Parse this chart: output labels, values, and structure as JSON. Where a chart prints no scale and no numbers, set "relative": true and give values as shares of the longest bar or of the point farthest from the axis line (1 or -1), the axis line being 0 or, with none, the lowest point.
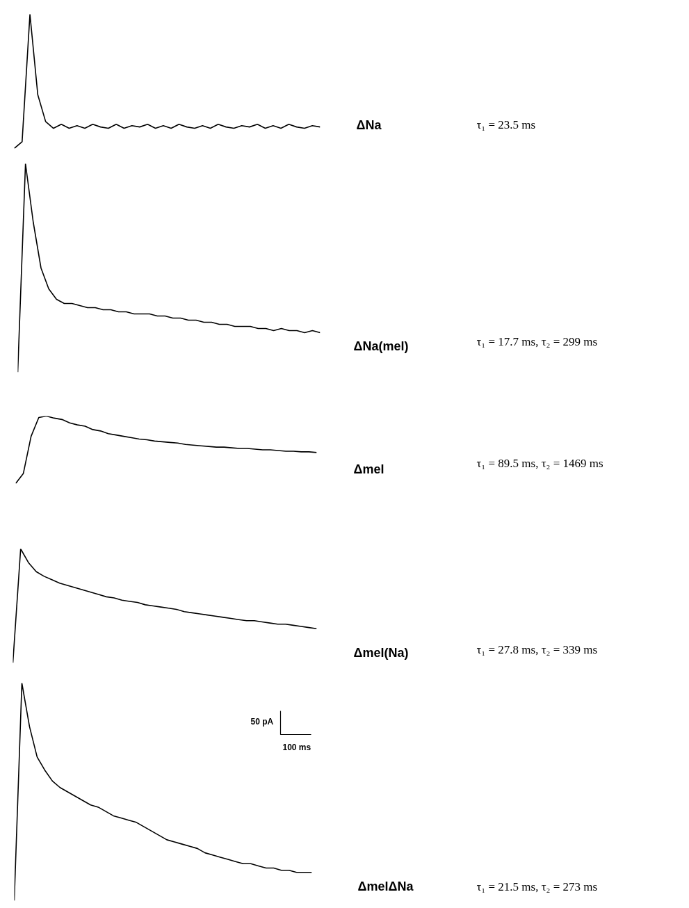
{
  "chart_data": [
    {
      "type": "line",
      "relative": true,
      "categories": [
        null,
        null,
        null,
        null,
        null,
        null,
        null,
        null,
        null,
        null,
        null,
        null,
        null,
        null,
        null,
        null,
        null,
        null,
        null,
        null,
        null,
        null,
        null,
        null,
        null,
        null,
        null,
        null,
        null,
        null,
        null,
        null,
        null,
        null,
        null,
        null,
        null,
        null,
        null,
        null
      ],
      "series": [
        {
          "color": "#000000",
          "values": [
            0,
            0.05,
            1,
            0.4,
            0.2,
            0.15,
            0.18,
            0.15,
            0.17,
            0.15,
            0.18,
            0.16,
            0.15,
            0.18,
            0.15,
            0.17,
            0.16,
            0.18,
            0.15,
            0.17,
            0.15,
            0.18,
            0.16,
            0.15,
            0.17,
            0.15,
            0.18,
            0.16,
            0.15,
            0.17,
            0.16,
            0.18,
            0.15,
            0.17,
            0.15,
            0.18,
            0.16,
            0.15,
            0.17,
            0.16
          ]
        }
      ],
      "annotations": [
        "ΔNa",
        "τ₁ = 23.5 ms"
      ]
    },
    {
      "type": "line",
      "relative": true,
      "categories": [
        null,
        null,
        null,
        null,
        null,
        null,
        null,
        null,
        null,
        null,
        null,
        null,
        null,
        null,
        null,
        null,
        null,
        null,
        null,
        null,
        null,
        null,
        null,
        null,
        null,
        null,
        null,
        null,
        null,
        null,
        null,
        null,
        null,
        null,
        null,
        null,
        null,
        null,
        null,
        null
      ],
      "series": [
        {
          "color": "#000000",
          "values": [
            0,
            1,
            0.72,
            0.5,
            0.4,
            0.35,
            0.33,
            0.33,
            0.32,
            0.31,
            0.31,
            0.3,
            0.3,
            0.29,
            0.29,
            0.28,
            0.28,
            0.28,
            0.27,
            0.27,
            0.26,
            0.26,
            0.25,
            0.25,
            0.24,
            0.24,
            0.23,
            0.23,
            0.22,
            0.22,
            0.22,
            0.21,
            0.21,
            0.2,
            0.21,
            0.2,
            0.2,
            0.19,
            0.2,
            0.19
          ]
        }
      ],
      "annotations": [
        "ΔNa(mel)",
        "τ₁ = 17.7 ms, τ₂ = 299 ms"
      ]
    },
    {
      "type": "line",
      "relative": true,
      "categories": [
        null,
        null,
        null,
        null,
        null,
        null,
        null,
        null,
        null,
        null,
        null,
        null,
        null,
        null,
        null,
        null,
        null,
        null,
        null,
        null,
        null,
        null,
        null,
        null,
        null,
        null,
        null,
        null,
        null,
        null,
        null,
        null,
        null,
        null,
        null,
        null,
        null,
        null,
        null,
        null
      ],
      "series": [
        {
          "color": "#000000",
          "values": [
            0,
            0.15,
            0.7,
            0.98,
            1,
            0.97,
            0.95,
            0.9,
            0.87,
            0.85,
            0.8,
            0.78,
            0.74,
            0.72,
            0.7,
            0.68,
            0.66,
            0.65,
            0.63,
            0.62,
            0.61,
            0.6,
            0.58,
            0.57,
            0.56,
            0.55,
            0.54,
            0.54,
            0.53,
            0.52,
            0.52,
            0.51,
            0.5,
            0.5,
            0.49,
            0.48,
            0.48,
            0.47,
            0.47,
            0.46
          ]
        }
      ],
      "annotations": [
        "Δmel",
        "τ₁ = 89.5 ms, τ₂ = 1469 ms"
      ]
    },
    {
      "type": "line",
      "relative": true,
      "categories": [
        null,
        null,
        null,
        null,
        null,
        null,
        null,
        null,
        null,
        null,
        null,
        null,
        null,
        null,
        null,
        null,
        null,
        null,
        null,
        null,
        null,
        null,
        null,
        null,
        null,
        null,
        null,
        null,
        null,
        null,
        null,
        null,
        null,
        null,
        null,
        null,
        null,
        null,
        null,
        null
      ],
      "series": [
        {
          "color": "#000000",
          "values": [
            0,
            1,
            0.88,
            0.8,
            0.76,
            0.73,
            0.7,
            0.68,
            0.66,
            0.64,
            0.62,
            0.6,
            0.58,
            0.57,
            0.55,
            0.54,
            0.53,
            0.51,
            0.5,
            0.49,
            0.48,
            0.47,
            0.45,
            0.44,
            0.43,
            0.42,
            0.41,
            0.4,
            0.39,
            0.38,
            0.37,
            0.37,
            0.36,
            0.35,
            0.34,
            0.34,
            0.33,
            0.32,
            0.31,
            0.3
          ]
        }
      ],
      "annotations": [
        "Δmel(Na)",
        "τ₁ = 27.8 ms, τ₂ = 339 ms"
      ]
    },
    {
      "type": "line",
      "relative": true,
      "categories": [
        null,
        null,
        null,
        null,
        null,
        null,
        null,
        null,
        null,
        null,
        null,
        null,
        null,
        null,
        null,
        null,
        null,
        null,
        null,
        null,
        null,
        null,
        null,
        null,
        null,
        null,
        null,
        null,
        null,
        null,
        null,
        null,
        null,
        null,
        null,
        null,
        null,
        null,
        null,
        null
      ],
      "series": [
        {
          "color": "#000000",
          "values": [
            0,
            1,
            0.8,
            0.66,
            0.6,
            0.55,
            0.52,
            0.5,
            0.48,
            0.46,
            0.44,
            0.43,
            0.41,
            0.39,
            0.38,
            0.37,
            0.36,
            0.34,
            0.32,
            0.3,
            0.28,
            0.27,
            0.26,
            0.25,
            0.24,
            0.22,
            0.21,
            0.2,
            0.19,
            0.18,
            0.17,
            0.17,
            0.16,
            0.15,
            0.15,
            0.14,
            0.14,
            0.13,
            0.13,
            0.13
          ]
        }
      ],
      "annotations": [
        "ΔmelΔNa",
        "τ₁ = 21.5 ms, τ₂ = 273 ms",
        "50 pA",
        "100 ms"
      ]
    }
  ]
}
